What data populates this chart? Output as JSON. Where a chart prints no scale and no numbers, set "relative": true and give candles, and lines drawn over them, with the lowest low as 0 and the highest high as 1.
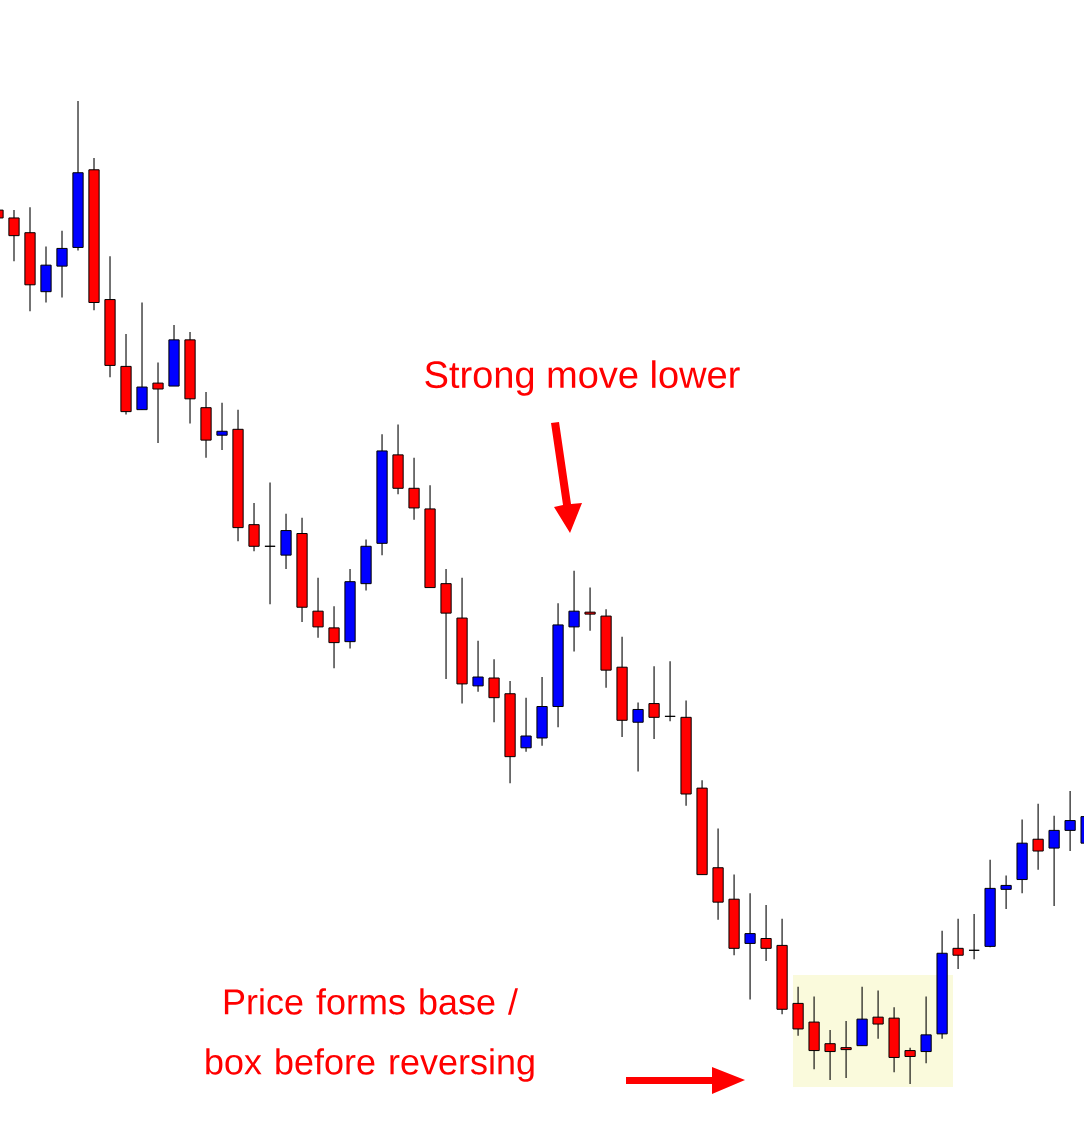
{
  "chart_data": {
    "type": "candlestick",
    "relative": true,
    "categories": [
      null,
      null,
      null,
      null,
      null,
      null,
      null,
      null,
      null,
      null,
      null,
      null,
      null,
      null,
      null,
      null,
      null,
      null,
      null,
      null,
      null,
      null,
      null,
      null,
      null,
      null,
      null,
      null,
      null,
      null,
      null,
      null,
      null,
      null,
      null,
      null,
      null,
      null,
      null,
      null,
      null,
      null,
      null,
      null,
      null,
      null,
      null,
      null,
      null,
      null,
      null,
      null,
      null,
      null,
      null,
      null,
      null,
      null,
      null,
      null,
      null,
      null,
      null,
      null,
      null,
      null,
      null,
      null,
      null
    ],
    "ohlc": [
      [
        0.889,
        0.889,
        0.881,
        0.881
      ],
      [
        0.881,
        0.889,
        0.837,
        0.863
      ],
      [
        0.866,
        0.892,
        0.786,
        0.813
      ],
      [
        0.806,
        0.852,
        0.795,
        0.833
      ],
      [
        0.832,
        0.868,
        0.8,
        0.85
      ],
      [
        0.851,
        1.0,
        0.848,
        0.927
      ],
      [
        0.93,
        0.942,
        0.787,
        0.795
      ],
      [
        0.798,
        0.842,
        0.719,
        0.731
      ],
      [
        0.73,
        0.763,
        0.681,
        0.684
      ],
      [
        0.686,
        0.795,
        0.686,
        0.709
      ],
      [
        0.713,
        0.734,
        0.652,
        0.707
      ],
      [
        0.71,
        0.772,
        0.71,
        0.757
      ],
      [
        0.757,
        0.765,
        0.672,
        0.697
      ],
      [
        0.688,
        0.704,
        0.637,
        0.655
      ],
      [
        0.66,
        0.693,
        0.645,
        0.664
      ],
      [
        0.666,
        0.686,
        0.552,
        0.566
      ],
      [
        0.569,
        0.591,
        0.542,
        0.547
      ],
      [
        0.547,
        0.612,
        0.488,
        0.547
      ],
      [
        0.538,
        0.58,
        0.524,
        0.563
      ],
      [
        0.56,
        0.576,
        0.47,
        0.485
      ],
      [
        0.481,
        0.515,
        0.454,
        0.465
      ],
      [
        0.464,
        0.486,
        0.423,
        0.449
      ],
      [
        0.45,
        0.524,
        0.443,
        0.511
      ],
      [
        0.509,
        0.554,
        0.502,
        0.547
      ],
      [
        0.55,
        0.661,
        0.538,
        0.644
      ],
      [
        0.64,
        0.671,
        0.6,
        0.606
      ],
      [
        0.606,
        0.637,
        0.574,
        0.586
      ],
      [
        0.585,
        0.609,
        0.505,
        0.505
      ],
      [
        0.509,
        0.524,
        0.412,
        0.479
      ],
      [
        0.474,
        0.515,
        0.387,
        0.407
      ],
      [
        0.405,
        0.451,
        0.399,
        0.414
      ],
      [
        0.413,
        0.432,
        0.368,
        0.393
      ],
      [
        0.397,
        0.41,
        0.306,
        0.333
      ],
      [
        0.342,
        0.393,
        0.338,
        0.354
      ],
      [
        0.352,
        0.414,
        0.344,
        0.384
      ],
      [
        0.384,
        0.489,
        0.363,
        0.467
      ],
      [
        0.465,
        0.522,
        0.44,
        0.481
      ],
      [
        0.48,
        0.505,
        0.461,
        0.478
      ],
      [
        0.476,
        0.483,
        0.403,
        0.421
      ],
      [
        0.424,
        0.455,
        0.353,
        0.37
      ],
      [
        0.368,
        0.388,
        0.318,
        0.381
      ],
      [
        0.387,
        0.425,
        0.351,
        0.373
      ],
      [
        0.374,
        0.43,
        0.369,
        0.374
      ],
      [
        0.373,
        0.39,
        0.283,
        0.295
      ],
      [
        0.301,
        0.309,
        0.213,
        0.213
      ],
      [
        0.22,
        0.26,
        0.167,
        0.185
      ],
      [
        0.188,
        0.213,
        0.131,
        0.138
      ],
      [
        0.143,
        0.194,
        0.086,
        0.153
      ],
      [
        0.148,
        0.182,
        0.125,
        0.138
      ],
      [
        0.141,
        0.168,
        0.071,
        0.076
      ],
      [
        0.082,
        0.099,
        0.049,
        0.056
      ],
      [
        0.063,
        0.089,
        0.015,
        0.034
      ],
      [
        0.041,
        0.055,
        0.004,
        0.033
      ],
      [
        0.037,
        0.064,
        0.006,
        0.035
      ],
      [
        0.039,
        0.099,
        0.039,
        0.066
      ],
      [
        0.068,
        0.095,
        0.046,
        0.061
      ],
      [
        0.067,
        0.078,
        0.012,
        0.027
      ],
      [
        0.034,
        0.037,
        0.0,
        0.028
      ],
      [
        0.033,
        0.089,
        0.021,
        0.05
      ],
      [
        0.051,
        0.156,
        0.046,
        0.133
      ],
      [
        0.138,
        0.168,
        0.117,
        0.131
      ],
      [
        0.136,
        0.173,
        0.127,
        0.136
      ],
      [
        0.14,
        0.228,
        0.139,
        0.199
      ],
      [
        0.198,
        0.212,
        0.178,
        0.202
      ],
      [
        0.208,
        0.269,
        0.194,
        0.245
      ],
      [
        0.249,
        0.285,
        0.218,
        0.237
      ],
      [
        0.24,
        0.273,
        0.181,
        0.258
      ],
      [
        0.258,
        0.298,
        0.237,
        0.268
      ],
      [
        0.245,
        0.272,
        0.245,
        0.272
      ]
    ],
    "colors": [
      "#ff0000",
      "#ff0000",
      "#ff0000",
      "#0000ff",
      "#0000ff",
      "#0000ff",
      "#ff0000",
      "#ff0000",
      "#ff0000",
      "#0000ff",
      "#ff0000",
      "#0000ff",
      "#ff0000",
      "#ff0000",
      "#0000ff",
      "#ff0000",
      "#ff0000",
      "#000000",
      "#0000ff",
      "#ff0000",
      "#ff0000",
      "#ff0000",
      "#0000ff",
      "#0000ff",
      "#0000ff",
      "#ff0000",
      "#ff0000",
      "#ff0000",
      "#ff0000",
      "#ff0000",
      "#0000ff",
      "#ff0000",
      "#ff0000",
      "#0000ff",
      "#0000ff",
      "#0000ff",
      "#0000ff",
      "#ff0000",
      "#ff0000",
      "#ff0000",
      "#0000ff",
      "#ff0000",
      "#000000",
      "#ff0000",
      "#ff0000",
      "#ff0000",
      "#ff0000",
      "#0000ff",
      "#ff0000",
      "#ff0000",
      "#ff0000",
      "#ff0000",
      "#ff0000",
      "#ff0000",
      "#0000ff",
      "#ff0000",
      "#ff0000",
      "#ff0000",
      "#0000ff",
      "#0000ff",
      "#ff0000",
      "#000000",
      "#0000ff",
      "#0000ff",
      "#0000ff",
      "#ff0000",
      "#0000ff",
      "#0000ff",
      "#0000ff"
    ],
    "annotations": [
      "Strong move lower",
      "Price forms base / box before reversing"
    ]
  }
}
